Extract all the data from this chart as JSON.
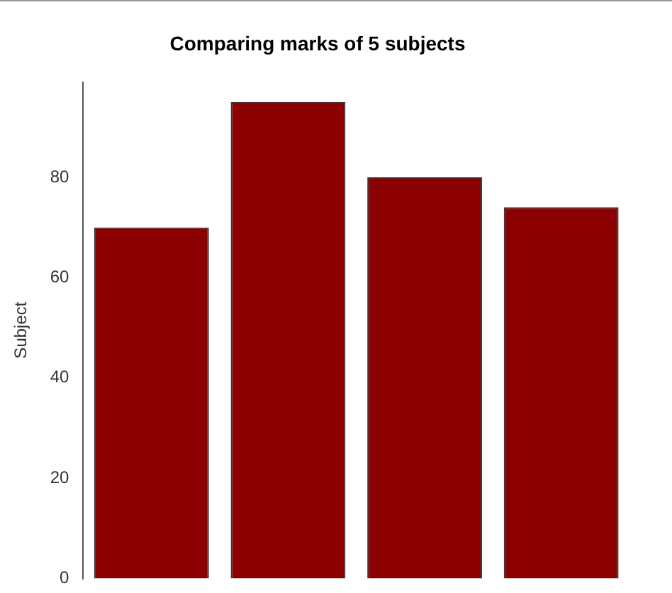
{
  "chart_data": {
    "type": "bar",
    "title": "Comparing marks of 5 subjects",
    "ylabel": "Subject",
    "categories": [
      null,
      null,
      null,
      null
    ],
    "values": [
      70,
      95,
      80,
      74
    ],
    "color": "#8b0000",
    "ylim": [
      0,
      99
    ],
    "yticks": [
      0,
      20,
      40,
      60,
      80
    ],
    "grid": false,
    "legend": false
  }
}
